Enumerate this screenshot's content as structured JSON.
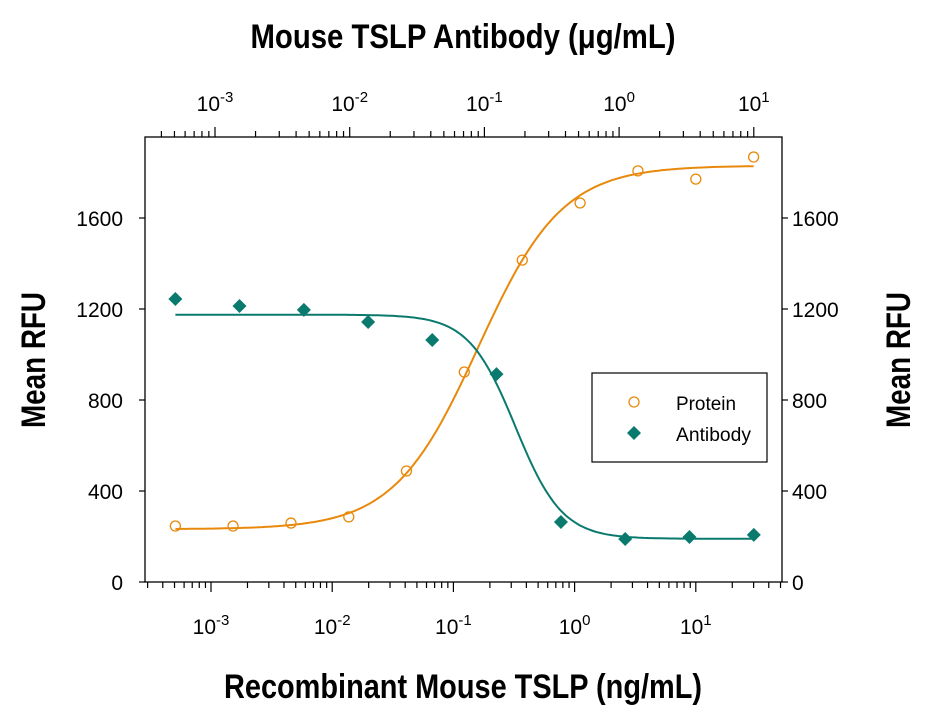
{
  "chart_data": {
    "type": "scatter",
    "title": "",
    "top_xlabel": "Mouse TSLP Antibody (μg/mL)",
    "xlabel": "Recombinant Mouse TSLP (ng/mL)",
    "ylabel": "Mean RFU",
    "right_ylabel": "Mean RFU",
    "x_scale": "log",
    "xlim_bottom": [
      0.0003,
      50
    ],
    "xlim_top": [
      0.0003,
      15
    ],
    "ylim": [
      0,
      1950
    ],
    "y_ticks": [
      "0",
      "400",
      "800",
      "1200",
      "1600"
    ],
    "bottom_x_ticks": [
      {
        "base": "10",
        "exp": "-3"
      },
      {
        "base": "10",
        "exp": "-2"
      },
      {
        "base": "10",
        "exp": "-1"
      },
      {
        "base": "10",
        "exp": "0"
      },
      {
        "base": "10",
        "exp": "1"
      }
    ],
    "top_x_ticks": [
      {
        "base": "10",
        "exp": "-3"
      },
      {
        "base": "10",
        "exp": "-2"
      },
      {
        "base": "10",
        "exp": "-1"
      },
      {
        "base": "10",
        "exp": "0"
      },
      {
        "base": "10",
        "exp": "1"
      }
    ],
    "grid": false,
    "legend_placement": "right",
    "series": [
      {
        "name": "Protein",
        "axis": "bottom",
        "marker": "open-circle",
        "color": "#E8890C",
        "x": [
          0.000508,
          0.00152,
          0.00457,
          0.0137,
          0.041,
          0.123,
          0.37,
          1.11,
          3.33,
          10,
          30
        ],
        "y": [
          246,
          246,
          259,
          286,
          488,
          923,
          1415,
          1666,
          1807,
          1771,
          1868
        ],
        "fit": {
          "model": "4PL",
          "bottom": 232,
          "top": 1830,
          "ec50": 0.16,
          "hill": 1.25
        }
      },
      {
        "name": "Antibody",
        "axis": "top",
        "marker": "filled-diamond",
        "color": "#0B7A6E",
        "x": [
          0.000508,
          0.00152,
          0.00457,
          0.0137,
          0.041,
          0.123,
          0.37,
          1.11,
          3.33,
          10
        ],
        "y": [
          1244,
          1213,
          1196,
          1143,
          1064,
          914,
          264,
          189,
          198,
          207
        ],
        "fit": {
          "model": "4PL",
          "bottom": 190,
          "top": 1175,
          "ec50": 0.17,
          "hill": -2.5
        }
      }
    ]
  }
}
